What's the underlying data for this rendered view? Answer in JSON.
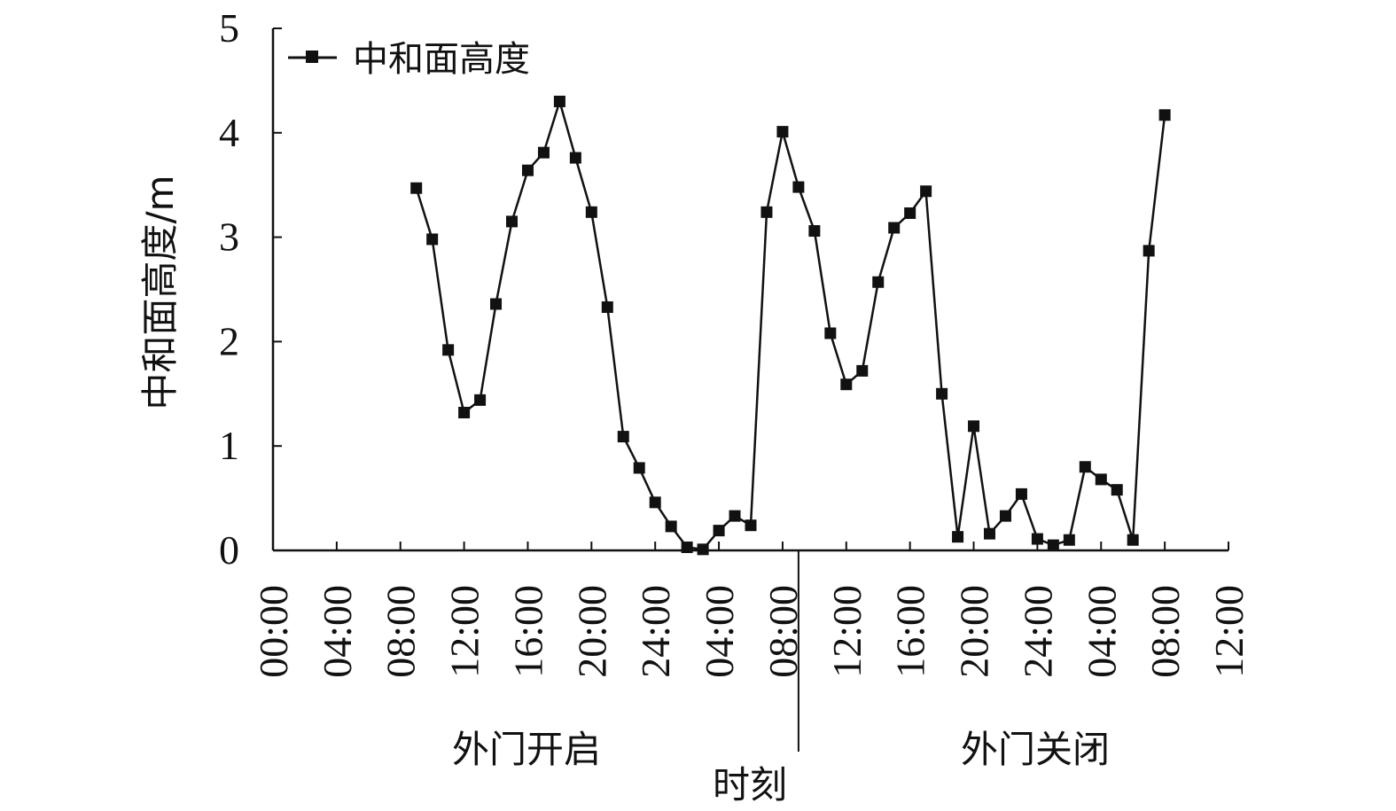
{
  "chart_data": {
    "type": "line",
    "ylabel": "中和面高度/m",
    "xlabel": "时刻",
    "ylim": [
      0,
      5
    ],
    "yticks": [
      "0",
      "1",
      "2",
      "3",
      "4",
      "5"
    ],
    "xlim": [
      0,
      60
    ],
    "xticks": [
      {
        "v": 0,
        "label": "00:00"
      },
      {
        "v": 4,
        "label": "04:00"
      },
      {
        "v": 8,
        "label": "08:00"
      },
      {
        "v": 12,
        "label": "12:00"
      },
      {
        "v": 16,
        "label": "16:00"
      },
      {
        "v": 20,
        "label": "20:00"
      },
      {
        "v": 24,
        "label": "24:00"
      },
      {
        "v": 28,
        "label": "04:00"
      },
      {
        "v": 32,
        "label": "08:00"
      },
      {
        "v": 36,
        "label": "12:00"
      },
      {
        "v": 40,
        "label": "16:00"
      },
      {
        "v": 44,
        "label": "20:00"
      },
      {
        "v": 48,
        "label": "24:00"
      },
      {
        "v": 52,
        "label": "04:00"
      },
      {
        "v": 56,
        "label": "08:00"
      },
      {
        "v": 60,
        "label": "12:00"
      }
    ],
    "sections": [
      {
        "label": "外门开启"
      },
      {
        "label": "外门关闭"
      }
    ],
    "divider_x": 33,
    "legend": {
      "position": "top-left"
    },
    "series": [
      {
        "name": "中和面高度",
        "color": "#111111",
        "x": [
          9,
          10,
          11,
          12,
          13,
          14,
          15,
          16,
          17,
          18,
          19,
          20,
          21,
          22,
          23,
          24,
          25,
          26,
          27,
          28,
          29,
          30,
          31,
          32,
          33,
          34,
          35,
          36,
          37,
          38,
          39,
          40,
          41,
          42,
          43,
          44,
          45,
          46,
          47,
          48,
          49,
          50,
          51,
          52,
          53,
          54,
          55,
          56
        ],
        "y": [
          3.47,
          2.98,
          1.92,
          1.32,
          1.44,
          2.36,
          3.15,
          3.64,
          3.81,
          4.3,
          3.76,
          3.24,
          2.33,
          1.09,
          0.79,
          0.46,
          0.23,
          0.03,
          0.01,
          0.19,
          0.33,
          0.24,
          3.24,
          4.01,
          3.48,
          3.06,
          2.08,
          1.59,
          1.72,
          2.57,
          3.09,
          3.23,
          3.44,
          1.5,
          0.13,
          1.19,
          0.16,
          0.33,
          0.54,
          0.11,
          0.05,
          0.1,
          0.8,
          0.68,
          0.58,
          0.1,
          2.87,
          4.17
        ]
      }
    ]
  }
}
